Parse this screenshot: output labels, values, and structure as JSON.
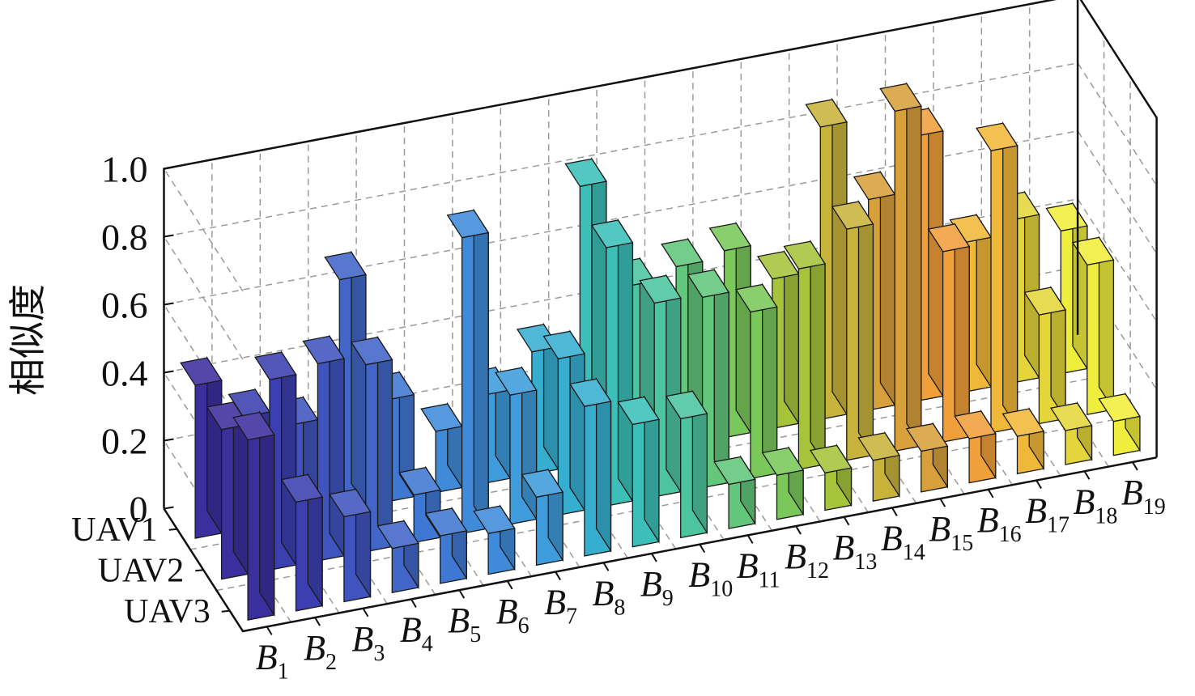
{
  "chart_data": {
    "type": "bar3d",
    "ylabel": "相似度",
    "yticks": [
      "0",
      "0.2",
      "0.4",
      "0.6",
      "0.8",
      "1.0"
    ],
    "ylim": [
      0,
      1.0
    ],
    "grid": true,
    "rows": [
      "UAV1",
      "UAV2",
      "UAV3"
    ],
    "categories": [
      {
        "base": "B",
        "sub": "1"
      },
      {
        "base": "B",
        "sub": "2"
      },
      {
        "base": "B",
        "sub": "3"
      },
      {
        "base": "B",
        "sub": "4"
      },
      {
        "base": "B",
        "sub": "5"
      },
      {
        "base": "B",
        "sub": "6"
      },
      {
        "base": "B",
        "sub": "7"
      },
      {
        "base": "B",
        "sub": "8"
      },
      {
        "base": "B",
        "sub": "9"
      },
      {
        "base": "B",
        "sub": "10"
      },
      {
        "base": "B",
        "sub": "11"
      },
      {
        "base": "B",
        "sub": "12"
      },
      {
        "base": "B",
        "sub": "13"
      },
      {
        "base": "B",
        "sub": "14"
      },
      {
        "base": "B",
        "sub": "15"
      },
      {
        "base": "B",
        "sub": "16"
      },
      {
        "base": "B",
        "sub": "17"
      },
      {
        "base": "B",
        "sub": "18"
      },
      {
        "base": "B",
        "sub": "19"
      }
    ],
    "series": [
      {
        "name": "UAV1",
        "values": [
          0.45,
          0.33,
          0.28,
          0.68,
          0.3,
          0.18,
          0.26,
          0.36,
          0.82,
          0.5,
          0.53,
          0.55,
          0.44,
          0.86,
          0.62,
          0.78,
          0.44,
          0.48,
          0.42
        ]
      },
      {
        "name": "UAV2",
        "values": [
          0.44,
          0.56,
          0.58,
          0.55,
          0.14,
          0.87,
          0.38,
          0.46,
          0.76,
          0.57,
          0.56,
          0.49,
          0.59,
          0.68,
          1.0,
          0.56,
          0.83,
          0.32,
          0.44
        ]
      },
      {
        "name": "UAV3",
        "values": [
          0.53,
          0.32,
          0.25,
          0.13,
          0.14,
          0.12,
          0.2,
          0.44,
          0.36,
          0.35,
          0.13,
          0.13,
          0.11,
          0.12,
          0.12,
          0.13,
          0.11,
          0.1,
          0.1
        ]
      }
    ],
    "colors": [
      "#3b2f9e",
      "#3c3fb0",
      "#3f54bf",
      "#4166c8",
      "#3f78d2",
      "#3f8bd9",
      "#3e9bdc",
      "#36aed0",
      "#3bbfb8",
      "#4cc59e",
      "#62c67b",
      "#7ac85a",
      "#a6c43a",
      "#c8b33a",
      "#d8a03a",
      "#f0a03a",
      "#f0b838",
      "#e4d63a",
      "#f0ee3c"
    ]
  }
}
